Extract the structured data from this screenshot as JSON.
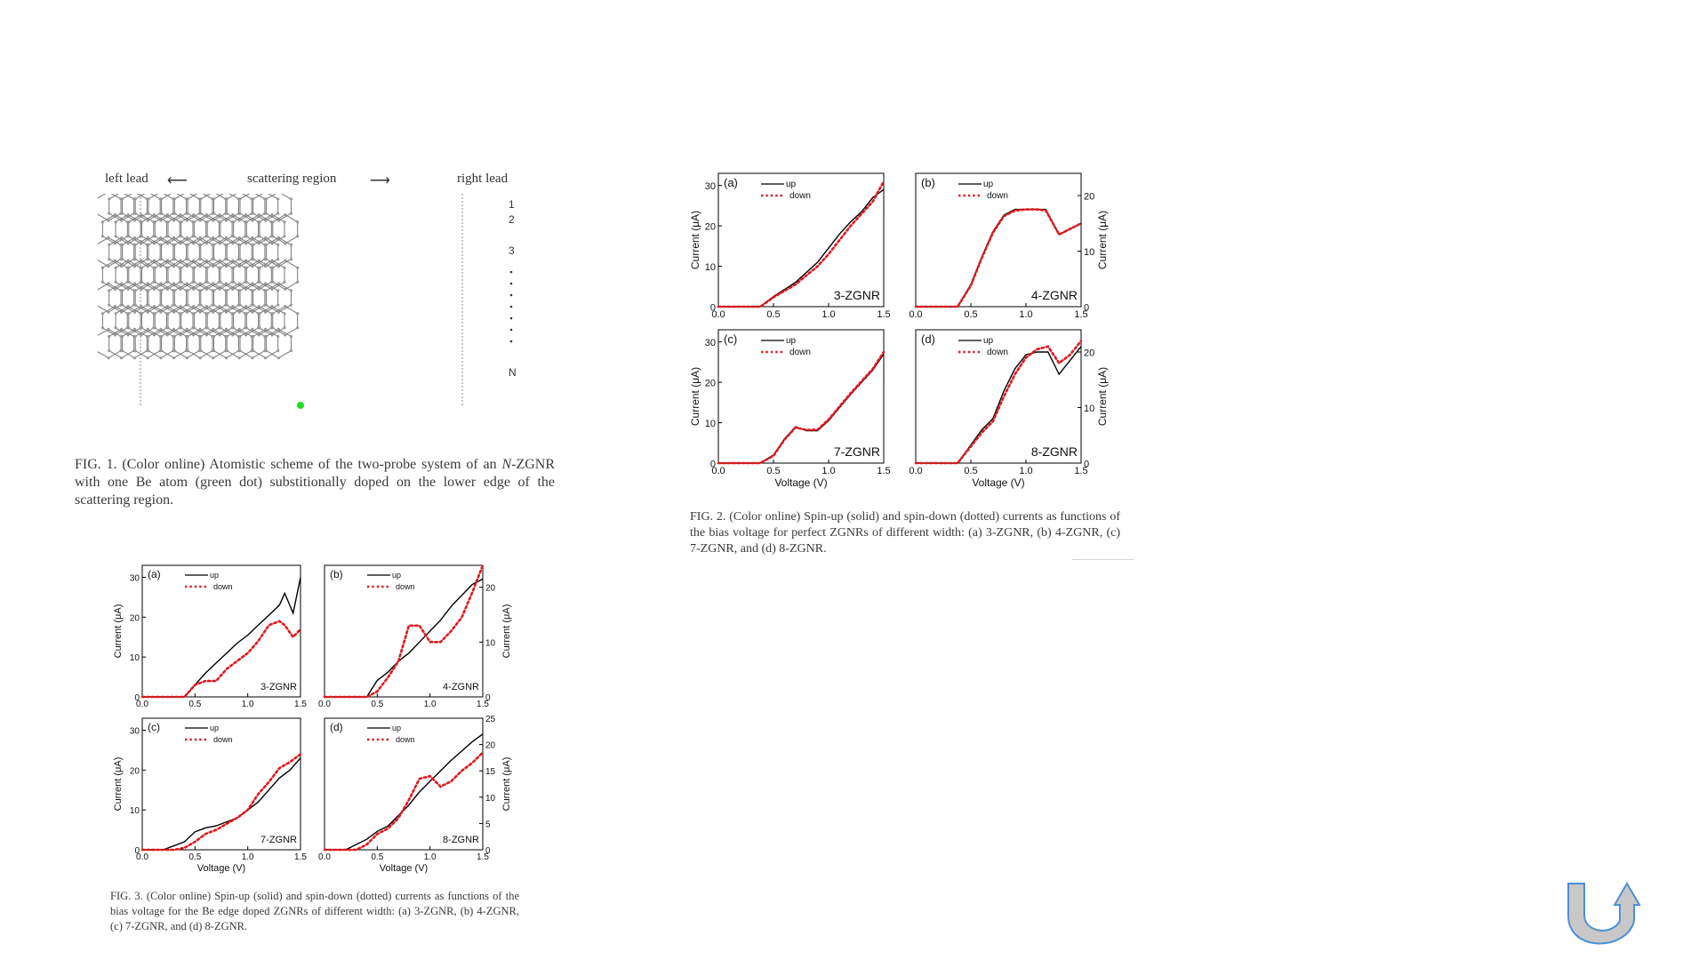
{
  "fig1": {
    "left_lead": "left lead",
    "scattering_region": "scattering region",
    "right_lead": "right lead",
    "row_labels": [
      "1",
      "2",
      "3",
      "N"
    ],
    "dopant_color": "#22dd22",
    "caption_prefix": "FIG. 1. (Color online) Atomistic scheme of the two-probe system of an ",
    "caption_italic": "N",
    "caption_suffix": "-ZGNR with one Be atom (green dot) substitionally doped on the lower edge of the scattering region."
  },
  "fig2": {
    "caption": "FIG. 2. (Color online) Spin-up (solid) and spin-down (dotted) currents as functions of the bias voltage for perfect ZGNRs of different width: (a) 3-ZGNR, (b) 4-ZGNR, (c) 7-ZGNR, and (d) 8-ZGNR."
  },
  "fig3": {
    "caption": "FIG. 3. (Color online) Spin-up (solid) and spin-down (dotted) currents as functions of the bias voltage for the Be edge doped ZGNRs of different width: (a) 3-ZGNR, (b) 4-ZGNR, (c) 7-ZGNR, and (d) 8-ZGNR."
  },
  "colors": {
    "up": "#000000",
    "down": "#e0191e",
    "arrow_fill": "#c8c8c8",
    "arrow_stroke": "#4a90d9"
  },
  "icons": {
    "return_arrow": "u-turn-arrow-icon"
  },
  "chart_data": [
    {
      "id": "fig2a",
      "type": "line",
      "panel_label": "(a)",
      "name": "3-ZGNR",
      "xlabel": "",
      "ylabel": "Current (μA)",
      "axis_side": "left",
      "xlim": [
        0,
        1.5
      ],
      "ylim": [
        0,
        33
      ],
      "yticks": [
        0,
        10,
        20,
        30
      ],
      "xticks": [
        "0.0",
        "0.5",
        "1.0",
        "1.5"
      ],
      "series": [
        {
          "name": "up",
          "x": [
            0,
            0.38,
            0.5,
            0.7,
            0.9,
            1.0,
            1.1,
            1.2,
            1.3,
            1.4,
            1.5
          ],
          "y": [
            0,
            0,
            2.5,
            6,
            11,
            14.5,
            18,
            21,
            23.5,
            27,
            29
          ]
        },
        {
          "name": "down",
          "x": [
            0,
            0.38,
            0.5,
            0.7,
            0.9,
            1.0,
            1.1,
            1.2,
            1.3,
            1.4,
            1.5
          ],
          "y": [
            0,
            0,
            2.3,
            5.5,
            10,
            13,
            16.5,
            20,
            23,
            26,
            31
          ]
        }
      ]
    },
    {
      "id": "fig2b",
      "type": "line",
      "panel_label": "(b)",
      "name": "4-ZGNR",
      "xlabel": "",
      "ylabel": "Current (μA)",
      "axis_side": "right",
      "xlim": [
        0,
        1.5
      ],
      "ylim": [
        0,
        24
      ],
      "yticks": [
        0,
        10,
        20
      ],
      "xticks": [
        "0.0",
        "0.5",
        "1.0",
        "1.5"
      ],
      "series": [
        {
          "name": "up",
          "x": [
            0,
            0.38,
            0.5,
            0.6,
            0.7,
            0.8,
            0.9,
            1.0,
            1.1,
            1.18,
            1.3,
            1.5
          ],
          "y": [
            0,
            0,
            4,
            9,
            13.5,
            16.5,
            17.5,
            17.5,
            17.5,
            17.5,
            13,
            15
          ]
        },
        {
          "name": "down",
          "x": [
            0,
            0.38,
            0.5,
            0.6,
            0.7,
            0.8,
            0.9,
            1.0,
            1.1,
            1.18,
            1.3,
            1.5
          ],
          "y": [
            0,
            0,
            3.8,
            8.8,
            13.3,
            16.3,
            17.3,
            17.5,
            17.5,
            17.3,
            13,
            15
          ]
        }
      ]
    },
    {
      "id": "fig2c",
      "type": "line",
      "panel_label": "(c)",
      "name": "7-ZGNR",
      "xlabel": "Voltage (V)",
      "ylabel": "Current (μA)",
      "axis_side": "left",
      "xlim": [
        0,
        1.5
      ],
      "ylim": [
        0,
        33
      ],
      "yticks": [
        0,
        10,
        20,
        30
      ],
      "xticks": [
        "0.0",
        "0.5",
        "1.0",
        "1.5"
      ],
      "series": [
        {
          "name": "up",
          "x": [
            0,
            0.38,
            0.5,
            0.6,
            0.7,
            0.8,
            0.9,
            1.0,
            1.2,
            1.4,
            1.5
          ],
          "y": [
            0,
            0,
            2,
            6,
            9,
            8,
            8,
            10.5,
            17,
            23,
            27
          ]
        },
        {
          "name": "down",
          "x": [
            0,
            0.38,
            0.5,
            0.6,
            0.7,
            0.8,
            0.9,
            1.0,
            1.2,
            1.4,
            1.5
          ],
          "y": [
            0,
            0,
            1.8,
            5.8,
            8.8,
            8.2,
            8.3,
            10.8,
            17.3,
            23.3,
            27.5
          ]
        }
      ]
    },
    {
      "id": "fig2d",
      "type": "line",
      "panel_label": "(d)",
      "name": "8-ZGNR",
      "xlabel": "Voltage (V)",
      "ylabel": "Current (μA)",
      "axis_side": "right",
      "xlim": [
        0,
        1.5
      ],
      "ylim": [
        0,
        24
      ],
      "yticks": [
        0,
        10,
        20
      ],
      "xticks": [
        "0.0",
        "0.5",
        "1.0",
        "1.5"
      ],
      "series": [
        {
          "name": "up",
          "x": [
            0,
            0.38,
            0.6,
            0.7,
            0.8,
            0.9,
            1.0,
            1.1,
            1.2,
            1.3,
            1.4,
            1.5
          ],
          "y": [
            0,
            0,
            6,
            8,
            13,
            17,
            19.5,
            20,
            20,
            16,
            18.5,
            21
          ]
        },
        {
          "name": "down",
          "x": [
            0,
            0.38,
            0.6,
            0.7,
            0.8,
            0.9,
            1.0,
            1.1,
            1.2,
            1.3,
            1.4,
            1.5
          ],
          "y": [
            0,
            0,
            5.5,
            7.5,
            12,
            16,
            19,
            20.5,
            21,
            18,
            19.5,
            22
          ]
        }
      ]
    },
    {
      "id": "fig3a",
      "type": "line",
      "panel_label": "(a)",
      "name": "3-ZGNR",
      "xlabel": "",
      "ylabel": "Current (μA)",
      "axis_side": "left",
      "xlim": [
        0,
        1.5
      ],
      "ylim": [
        0,
        33
      ],
      "yticks": [
        0,
        10,
        20,
        30
      ],
      "xticks": [
        "0.0",
        "0.5",
        "1.0",
        "1.5"
      ],
      "series": [
        {
          "name": "up",
          "x": [
            0,
            0.4,
            0.5,
            0.6,
            0.7,
            0.8,
            0.9,
            1.0,
            1.1,
            1.2,
            1.3,
            1.35,
            1.43,
            1.5
          ],
          "y": [
            0,
            0,
            3,
            6,
            8.5,
            11,
            13.5,
            15.5,
            18,
            20.5,
            23,
            26,
            21,
            30
          ]
        },
        {
          "name": "down",
          "x": [
            0,
            0.4,
            0.5,
            0.6,
            0.7,
            0.8,
            0.9,
            1.0,
            1.1,
            1.2,
            1.3,
            1.35,
            1.43,
            1.5
          ],
          "y": [
            0,
            0,
            3,
            4,
            4,
            7,
            9,
            11,
            14,
            18,
            19,
            18,
            15,
            17
          ]
        }
      ]
    },
    {
      "id": "fig3b",
      "type": "line",
      "panel_label": "(b)",
      "name": "4-ZGNR",
      "xlabel": "",
      "ylabel": "Current (μA)",
      "axis_side": "right",
      "xlim": [
        0,
        1.5
      ],
      "ylim": [
        0,
        24
      ],
      "yticks": [
        0,
        10,
        20
      ],
      "xticks": [
        "0.0",
        "0.5",
        "1.0",
        "1.5"
      ],
      "series": [
        {
          "name": "up",
          "x": [
            0,
            0.4,
            0.5,
            0.6,
            0.7,
            0.8,
            0.9,
            1.0,
            1.1,
            1.2,
            1.3,
            1.4,
            1.5
          ],
          "y": [
            0,
            0,
            3,
            4.5,
            6.5,
            8,
            10,
            12,
            14,
            16.5,
            18.5,
            20.5,
            21.5
          ]
        },
        {
          "name": "down",
          "x": [
            0,
            0.4,
            0.5,
            0.6,
            0.7,
            0.8,
            0.9,
            1.0,
            1.1,
            1.2,
            1.3,
            1.4,
            1.5
          ],
          "y": [
            0,
            0,
            1,
            3.5,
            6.5,
            13,
            13,
            10,
            10,
            12,
            14.5,
            19,
            24
          ]
        }
      ]
    },
    {
      "id": "fig3c",
      "type": "line",
      "panel_label": "(c)",
      "name": "7-ZGNR",
      "xlabel": "Voltage (V)",
      "ylabel": "Current (μA)",
      "axis_side": "left",
      "xlim": [
        0,
        1.5
      ],
      "ylim": [
        0,
        33
      ],
      "yticks": [
        0,
        10,
        20,
        30
      ],
      "xticks": [
        "0.0",
        "0.5",
        "1.0",
        "1.5"
      ],
      "series": [
        {
          "name": "up",
          "x": [
            0,
            0.2,
            0.4,
            0.5,
            0.6,
            0.7,
            0.8,
            0.9,
            1.0,
            1.1,
            1.2,
            1.3,
            1.4,
            1.5
          ],
          "y": [
            0,
            0,
            2,
            4.5,
            5.5,
            6,
            7,
            8,
            10,
            12,
            15,
            18,
            20,
            23
          ]
        },
        {
          "name": "down",
          "x": [
            0,
            0.3,
            0.4,
            0.5,
            0.6,
            0.7,
            0.8,
            0.9,
            1.0,
            1.1,
            1.2,
            1.3,
            1.4,
            1.5
          ],
          "y": [
            0,
            0,
            0.5,
            2,
            4,
            5,
            6.5,
            8,
            10,
            14,
            17,
            20.5,
            22,
            24
          ]
        }
      ]
    },
    {
      "id": "fig3d",
      "type": "line",
      "panel_label": "(d)",
      "name": "8-ZGNR",
      "xlabel": "Voltage (V)",
      "ylabel": "Current (μA)",
      "axis_side": "right",
      "xlim": [
        0,
        1.5
      ],
      "ylim": [
        0,
        25
      ],
      "yticks": [
        0,
        5,
        10,
        15,
        20,
        25
      ],
      "xticks": [
        "0.0",
        "0.5",
        "1.0",
        "1.5"
      ],
      "series": [
        {
          "name": "up",
          "x": [
            0,
            0.2,
            0.4,
            0.5,
            0.6,
            0.7,
            0.8,
            0.9,
            1.0,
            1.2,
            1.4,
            1.5
          ],
          "y": [
            0,
            0,
            2,
            3.5,
            4.5,
            6.5,
            8.5,
            11,
            13,
            17,
            20.5,
            22
          ]
        },
        {
          "name": "down",
          "x": [
            0,
            0.3,
            0.4,
            0.5,
            0.6,
            0.7,
            0.8,
            0.9,
            1.0,
            1.1,
            1.2,
            1.3,
            1.4,
            1.5
          ],
          "y": [
            0,
            0,
            1,
            3,
            4,
            6,
            9.5,
            13.5,
            14,
            12,
            13,
            15,
            16.5,
            18.5
          ]
        }
      ]
    }
  ]
}
